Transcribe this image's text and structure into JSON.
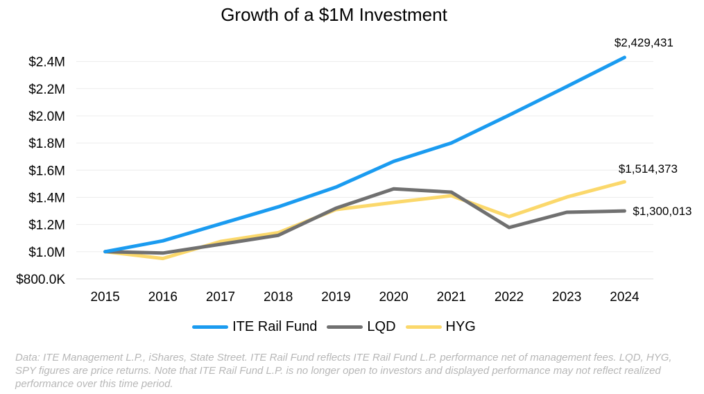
{
  "chart_data": {
    "type": "line",
    "title": "Growth of a $1M Investment",
    "xlabel": "",
    "ylabel": "",
    "x": [
      "2015",
      "2016",
      "2017",
      "2018",
      "2019",
      "2020",
      "2021",
      "2022",
      "2023",
      "2024"
    ],
    "ylim": [
      800000,
      2500000
    ],
    "yticks": [
      800000,
      1000000,
      1200000,
      1400000,
      1600000,
      1800000,
      2000000,
      2200000,
      2400000
    ],
    "ytick_labels": [
      "$800.0K",
      "$1.0M",
      "$1.2M",
      "$1.4M",
      "$1.6M",
      "$1.8M",
      "$2.0M",
      "$2.2M",
      "$2.4M"
    ],
    "grid": "horizontal",
    "legend_position": "bottom",
    "series": [
      {
        "name": "ITE Rail Fund",
        "color": "#1a9bf0",
        "values": [
          1000000,
          1080000,
          1205000,
          1330000,
          1475000,
          1665000,
          1800000,
          2005000,
          2215000,
          2429431
        ],
        "end_label": "$2,429,431"
      },
      {
        "name": "LQD",
        "color": "#707070",
        "values": [
          1000000,
          990000,
          1055000,
          1120000,
          1320000,
          1462000,
          1438000,
          1178000,
          1290000,
          1300013
        ],
        "end_label": "$1,300,013"
      },
      {
        "name": "HYG",
        "color": "#fbd86b",
        "values": [
          1000000,
          950000,
          1075000,
          1140000,
          1310000,
          1362000,
          1412000,
          1258000,
          1402000,
          1514373
        ],
        "end_label": "$1,514,373"
      }
    ]
  },
  "footnote": "Data: ITE Management L.P., iShares, State Street. ITE Rail Fund reflects ITE Rail Fund L.P. performance net of management fees. LQD, HYG, SPY figures are price returns. Note that ITE Rail Fund L.P. is no longer open to investors and displayed performance may not reflect realized performance over this time period."
}
